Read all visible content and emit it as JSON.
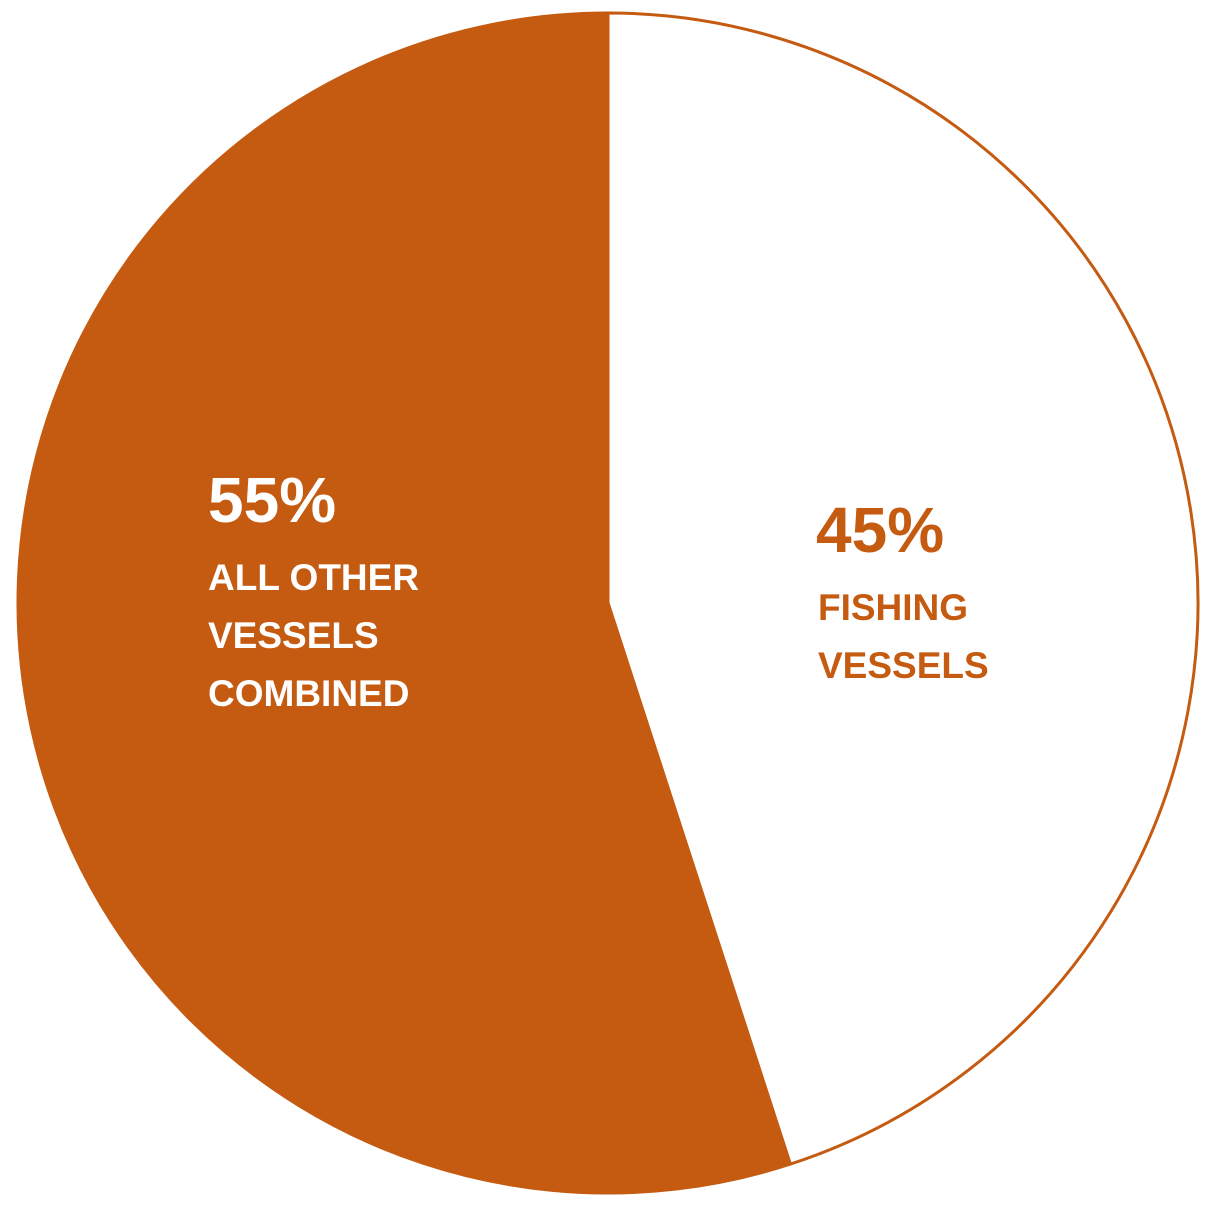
{
  "chart_data": {
    "type": "pie",
    "title": "",
    "slices": [
      {
        "key": "fishing",
        "value": 45,
        "percent_label": "45%",
        "label_lines": [
          "FISHING",
          "VESSELS"
        ],
        "fill": "#ffffff",
        "text_color": "#c55a11"
      },
      {
        "key": "other",
        "value": 55,
        "percent_label": "55%",
        "label_lines": [
          "ALL OTHER",
          "VESSELS",
          "COMBINED"
        ],
        "fill": "#c55a11",
        "text_color": "#ffffff"
      }
    ],
    "start_angle_deg": 0,
    "direction": "clockwise",
    "border_color": "#c55a11",
    "legend": "none"
  }
}
